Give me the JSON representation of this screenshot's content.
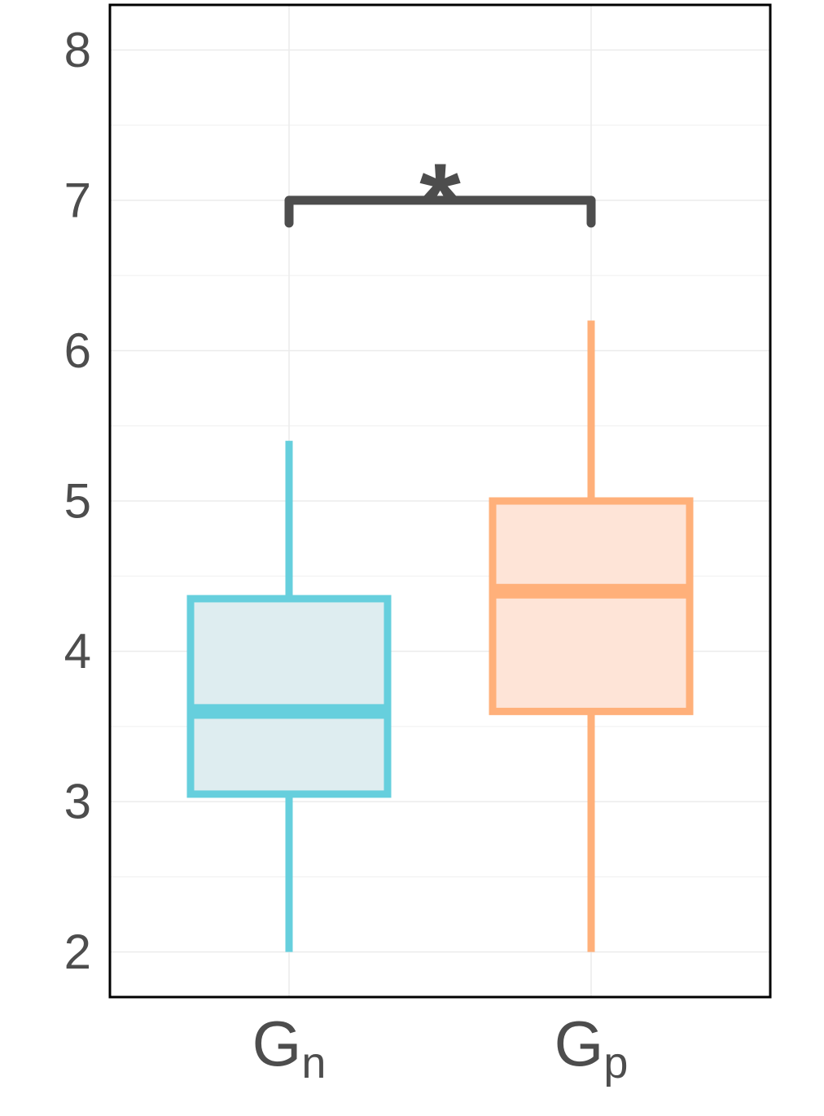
{
  "chart_data": {
    "type": "box",
    "title": "",
    "xlabel": "",
    "ylabel": "",
    "ylim": [
      1.7,
      8.3
    ],
    "y_ticks": [
      2,
      3,
      4,
      5,
      6,
      7,
      8
    ],
    "grid": true,
    "categories": [
      {
        "main": "G",
        "sub": "n"
      },
      {
        "main": "G",
        "sub": "p"
      }
    ],
    "series": [
      {
        "category_index": 0,
        "whisker_low": 2.0,
        "q1": 3.05,
        "median": 3.6,
        "q3": 4.35,
        "whisker_high": 5.4,
        "stroke_color": "#66cfdd",
        "fill_color": "#deedf0"
      },
      {
        "category_index": 1,
        "whisker_low": 2.0,
        "q1": 3.6,
        "median": 4.4,
        "q3": 5.0,
        "whisker_high": 6.2,
        "stroke_color": "#ffb07a",
        "fill_color": "#fee4d7"
      }
    ],
    "annotations": [
      {
        "type": "significance-bracket",
        "from": 0,
        "to": 1,
        "y": 7.0,
        "label": "*",
        "color": "#4d4d4d"
      }
    ]
  }
}
